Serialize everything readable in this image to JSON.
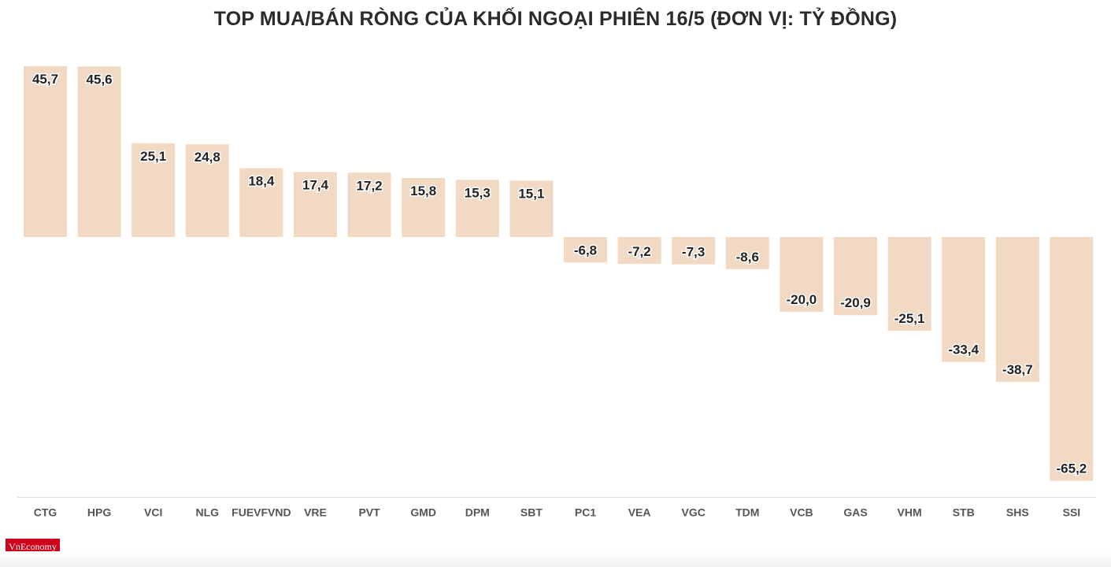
{
  "chart_data": {
    "type": "bar",
    "title": "TOP MUA/BÁN RÒNG CỦA KHỐI NGOẠI PHIÊN 16/5 (ĐƠN VỊ: TỶ ĐỒNG)",
    "categories": [
      "CTG",
      "HPG",
      "VCI",
      "NLG",
      "FUEVFVND",
      "VRE",
      "PVT",
      "GMD",
      "DPM",
      "SBT",
      "PC1",
      "VEA",
      "VGC",
      "TDM",
      "VCB",
      "GAS",
      "VHM",
      "STB",
      "SHS",
      "SSI"
    ],
    "values": [
      45.7,
      45.6,
      25.1,
      24.8,
      18.4,
      17.4,
      17.2,
      15.8,
      15.3,
      15.1,
      -6.8,
      -7.2,
      -7.3,
      -8.6,
      -20.0,
      -20.9,
      -25.1,
      -33.4,
      -38.7,
      -65.2
    ],
    "labels": [
      "45,7",
      "45,6",
      "25,1",
      "24,8",
      "18,4",
      "17,4",
      "17,2",
      "15,8",
      "15,3",
      "15,1",
      "-6,8",
      "-7,2",
      "-7,3",
      "-8,6",
      "-20,0",
      "-20,9",
      "-25,1",
      "-33,4",
      "-38,7",
      "-65,2"
    ],
    "xlabel": "",
    "ylabel": "",
    "ylim": [
      -69.6,
      45.7
    ],
    "grid": false,
    "bar_color": "#f2d9c4"
  },
  "logo": {
    "text": "VnEconomy",
    "color": "#d0021b"
  }
}
